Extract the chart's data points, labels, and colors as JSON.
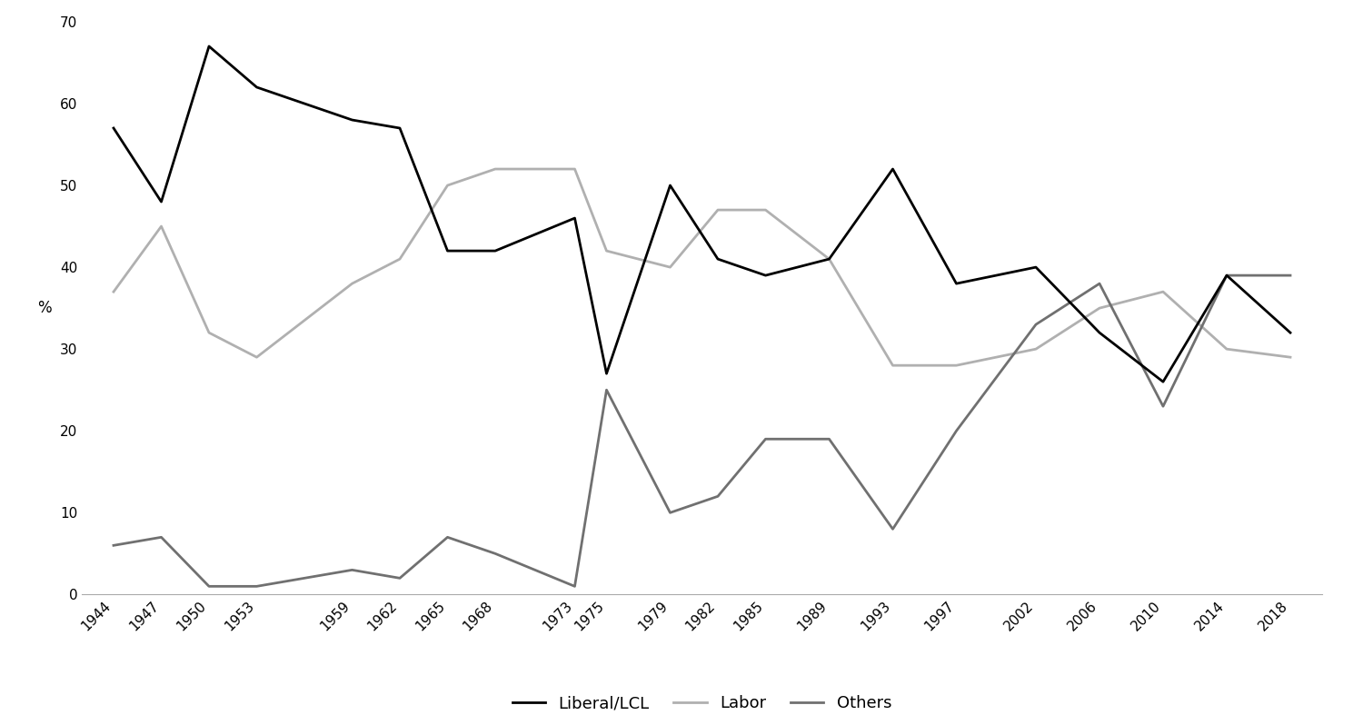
{
  "years": [
    1944,
    1947,
    1950,
    1953,
    1959,
    1962,
    1965,
    1968,
    1973,
    1975,
    1979,
    1982,
    1985,
    1989,
    1993,
    1997,
    2002,
    2006,
    2010,
    2014,
    2018
  ],
  "liberal_lcl": [
    57,
    48,
    67,
    62,
    58,
    57,
    42,
    42,
    46,
    27,
    50,
    41,
    39,
    41,
    52,
    38,
    40,
    32,
    26,
    39,
    32
  ],
  "labor": [
    37,
    45,
    32,
    29,
    38,
    41,
    50,
    52,
    52,
    42,
    40,
    47,
    47,
    41,
    28,
    28,
    30,
    35,
    37,
    30,
    29
  ],
  "others": [
    6,
    7,
    1,
    1,
    3,
    2,
    7,
    5,
    1,
    25,
    10,
    12,
    19,
    19,
    8,
    20,
    33,
    38,
    23,
    39,
    39
  ],
  "liberal_color": "#000000",
  "labor_color": "#b0b0b0",
  "others_color": "#707070",
  "liberal_label": "Liberal/LCL",
  "labor_label": "Labor",
  "others_label": "Others",
  "ylabel": "%",
  "ylim": [
    0,
    70
  ],
  "yticks": [
    0,
    10,
    20,
    30,
    40,
    50,
    60,
    70
  ],
  "background_color": "#ffffff",
  "line_width": 2.0,
  "legend_fontsize": 13,
  "tick_fontsize": 11,
  "xlim": [
    1942,
    2020
  ]
}
